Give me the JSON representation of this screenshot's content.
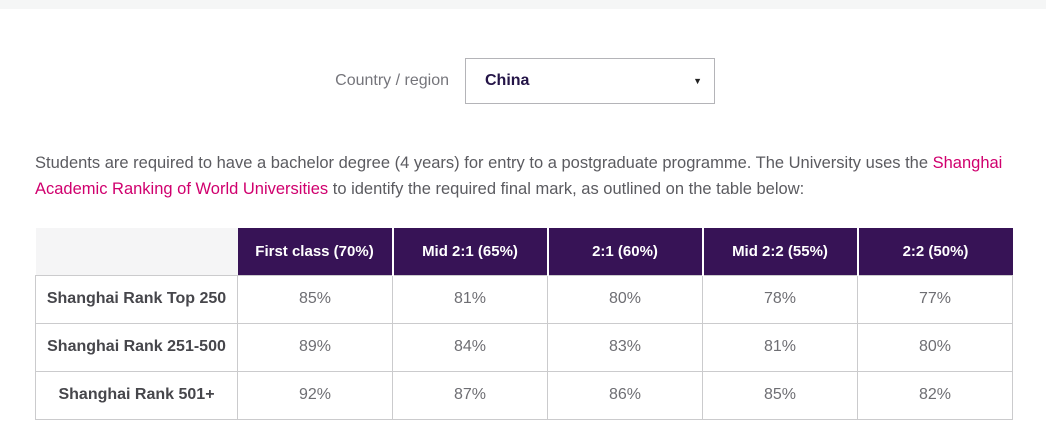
{
  "filter": {
    "label": "Country / region",
    "selected_value": "China",
    "arrow_icon": "▼"
  },
  "intro": {
    "before_link": "Students are required to have a bachelor degree (4 years) for entry to a postgraduate programme. The University uses the ",
    "link_text": "Shanghai Academic Ranking of World Universities",
    "after_link": " to identify the required final mark, as outlined on the table below:"
  },
  "table": {
    "columns": [
      "First class (70%)",
      "Mid 2:1 (65%)",
      "2:1 (60%)",
      "Mid 2:2 (55%)",
      "2:2 (50%)"
    ],
    "rows": [
      {
        "label": "Shanghai Rank Top 250",
        "values": [
          "85%",
          "81%",
          "80%",
          "78%",
          "77%"
        ]
      },
      {
        "label": "Shanghai Rank 251-500",
        "values": [
          "89%",
          "84%",
          "83%",
          "81%",
          "80%"
        ]
      },
      {
        "label": "Shanghai Rank 501+",
        "values": [
          "92%",
          "87%",
          "86%",
          "85%",
          "82%"
        ]
      }
    ]
  },
  "colors": {
    "header_purple": "#371356",
    "link_pink": "#d0006e",
    "top_strip_gray": "#f5f6f6",
    "body_text_gray": "#5b5b60",
    "cell_border_gray": "#cbcbcd"
  }
}
